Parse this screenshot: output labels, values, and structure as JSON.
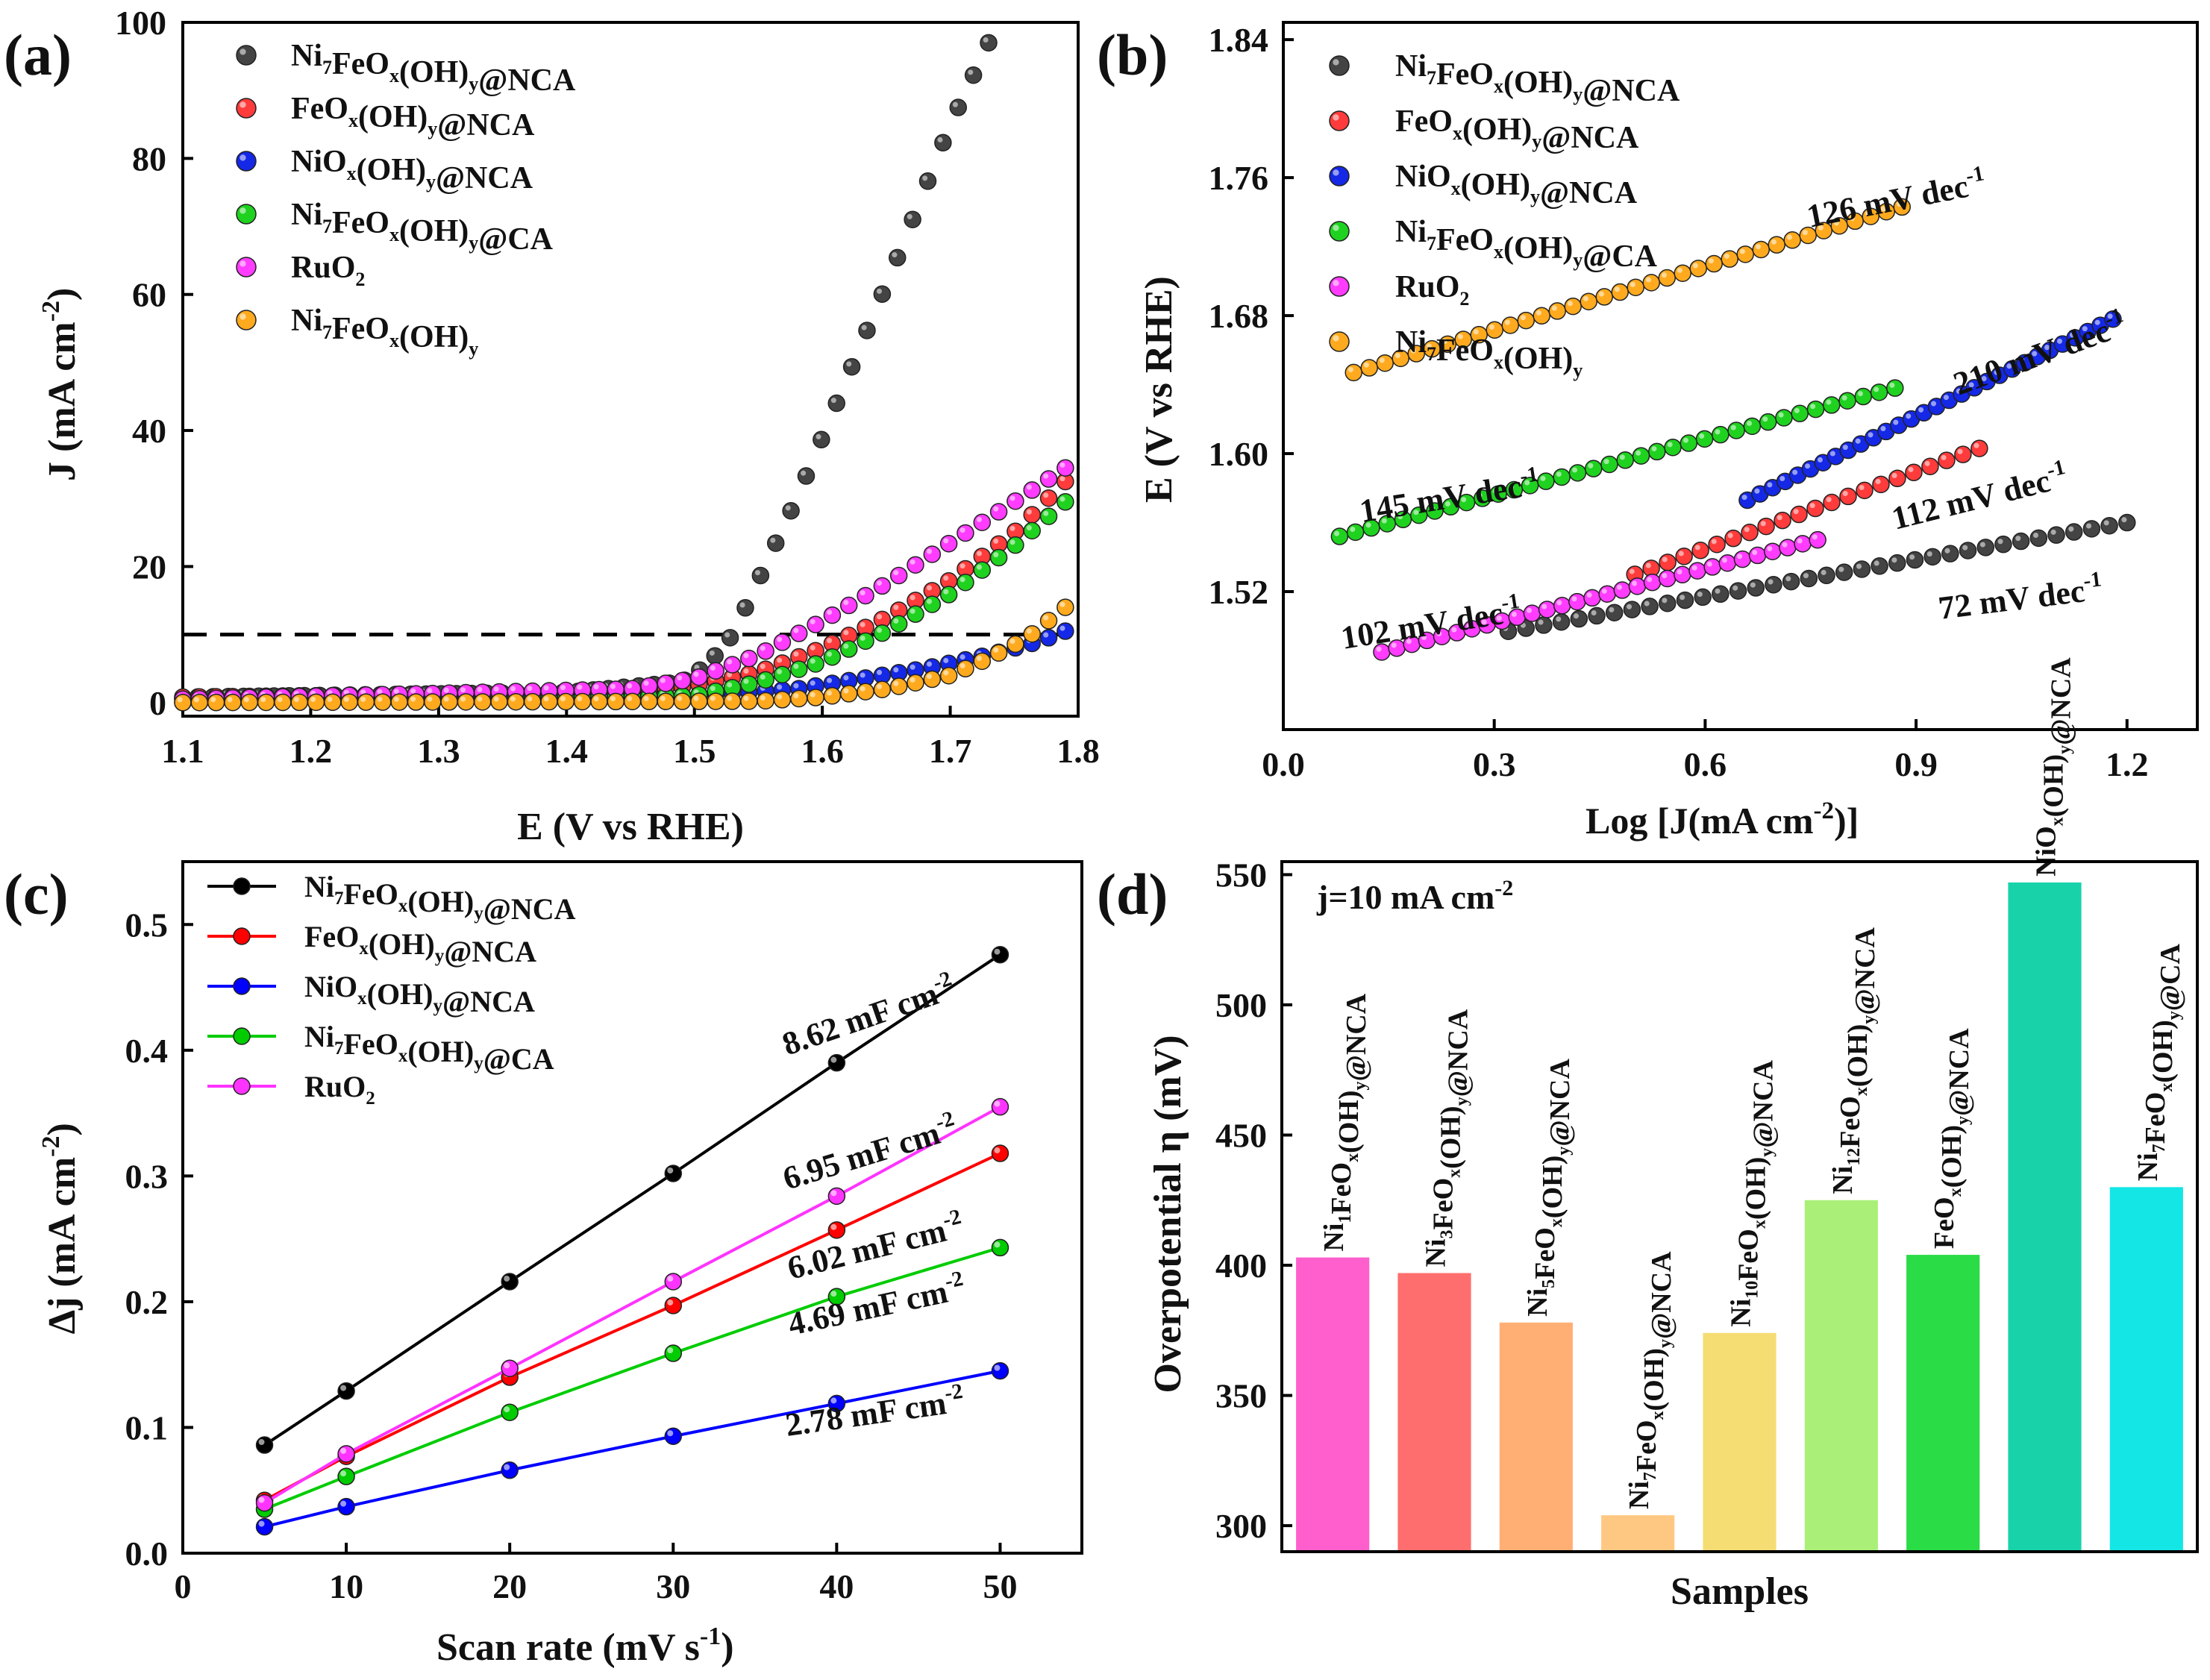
{
  "figure": {
    "panels": [
      "(a)",
      "(b)",
      "(c)",
      "(d)"
    ]
  },
  "colors": {
    "black": "#444444",
    "red": "#ff3b3b",
    "blue": "#1428e6",
    "green": "#1fd21f",
    "magenta": "#ff3cff",
    "orange": "#ffaa1e",
    "line_black": "#000000",
    "line_red": "#ff0000",
    "line_blue": "#0000ff",
    "line_green": "#00cc00",
    "line_magenta": "#ff33ff"
  },
  "chart_data": [
    {
      "panel": "(a)",
      "type": "scatter",
      "xlabel": "E (V vs RHE)",
      "ylabel": "J (mA cm-2)",
      "xlim": [
        1.1,
        1.8
      ],
      "ylim": [
        -2,
        100
      ],
      "xticks": [
        "1.1",
        "1.2",
        "1.3",
        "1.4",
        "1.5",
        "1.6",
        "1.7",
        "1.8"
      ],
      "yticks": [
        "0",
        "20",
        "40",
        "60",
        "80",
        "100"
      ],
      "reference_line_y": 10,
      "legend": [
        {
          "base": "Ni",
          "sub1": "7",
          "mid": "FeO",
          "sub2": "x",
          "mid2": "(OH)",
          "sub3": "y",
          "tail": "@NCA",
          "color": "black"
        },
        {
          "base": "",
          "sub1": "",
          "mid": "FeO",
          "sub2": "x",
          "mid2": "(OH)",
          "sub3": "y",
          "tail": "@NCA",
          "color": "red"
        },
        {
          "base": "",
          "sub1": "",
          "mid": "NiO",
          "sub2": "x",
          "mid2": "(OH)",
          "sub3": "y",
          "tail": "@NCA",
          "color": "blue"
        },
        {
          "base": "Ni",
          "sub1": "7",
          "mid": "FeO",
          "sub2": "x",
          "mid2": "(OH)",
          "sub3": "y",
          "tail": "@CA",
          "color": "green"
        },
        {
          "base": "",
          "sub1": "",
          "mid": "RuO",
          "sub2": "2",
          "mid2": "",
          "sub3": "",
          "tail": "",
          "color": "magenta"
        },
        {
          "base": "Ni",
          "sub1": "7",
          "mid": "FeO",
          "sub2": "x",
          "mid2": "(OH)",
          "sub3": "y",
          "tail": "",
          "color": "orange"
        }
      ],
      "series": [
        {
          "name": "Ni7FeOx(OH)y@NCA",
          "color": "black",
          "x": [
            1.1,
            1.4,
            1.49,
            1.51,
            1.53,
            1.55,
            1.58,
            1.62,
            1.66,
            1.7,
            1.73
          ],
          "y": [
            0.8,
            1.5,
            3,
            5.5,
            10,
            18,
            30,
            48,
            66,
            85,
            97
          ]
        },
        {
          "name": "FeOx(OH)y@NCA",
          "color": "red",
          "x": [
            1.1,
            1.45,
            1.5,
            1.55,
            1.6,
            1.65,
            1.7,
            1.75,
            1.79
          ],
          "y": [
            0.8,
            1.5,
            2.5,
            4.5,
            8,
            12.5,
            18,
            25,
            32.5
          ]
        },
        {
          "name": "NiOx(OH)y@NCA",
          "color": "blue",
          "x": [
            1.1,
            1.5,
            1.58,
            1.63,
            1.68,
            1.73,
            1.77,
            1.79
          ],
          "y": [
            0.5,
            1.0,
            2.0,
            3.5,
            5.0,
            7.0,
            9.0,
            10.5
          ]
        },
        {
          "name": "Ni7FeOx(OH)y@CA",
          "color": "green",
          "x": [
            1.1,
            1.5,
            1.55,
            1.6,
            1.65,
            1.7,
            1.75,
            1.79
          ],
          "y": [
            0,
            1.0,
            3,
            6,
            10.5,
            16,
            23,
            29.5
          ]
        },
        {
          "name": "RuO2",
          "color": "magenta",
          "x": [
            1.1,
            1.45,
            1.5,
            1.55,
            1.6,
            1.65,
            1.7,
            1.75,
            1.79
          ],
          "y": [
            0.5,
            2,
            3.5,
            7,
            12,
            17.5,
            23.5,
            29.5,
            34.5
          ]
        },
        {
          "name": "Ni7FeOx(OH)y",
          "color": "orange",
          "x": [
            1.1,
            1.55,
            1.6,
            1.65,
            1.7,
            1.73,
            1.76,
            1.79
          ],
          "y": [
            0,
            0.2,
            0.8,
            2.0,
            4.0,
            6.5,
            9.5,
            14
          ]
        }
      ]
    },
    {
      "panel": "(b)",
      "type": "scatter",
      "xlabel": "Log [J(mA cm-2)]",
      "ylabel": "E (V vs RHE)",
      "xlim": [
        0.0,
        1.3
      ],
      "ylim": [
        1.44,
        1.85
      ],
      "xticks": [
        "0.0",
        "0.3",
        "0.6",
        "0.9",
        "1.2"
      ],
      "yticks": [
        "1.52",
        "1.60",
        "1.68",
        "1.76",
        "1.84"
      ],
      "legend": [
        {
          "base": "Ni",
          "sub1": "7",
          "mid": "FeO",
          "sub2": "x",
          "mid2": "(OH)",
          "sub3": "y",
          "tail": "@NCA",
          "color": "black"
        },
        {
          "base": "",
          "sub1": "",
          "mid": "FeO",
          "sub2": "x",
          "mid2": "(OH)",
          "sub3": "y",
          "tail": "@NCA",
          "color": "red"
        },
        {
          "base": "",
          "sub1": "",
          "mid": "NiO",
          "sub2": "x",
          "mid2": "(OH)",
          "sub3": "y",
          "tail": "@NCA",
          "color": "blue"
        },
        {
          "base": "Ni",
          "sub1": "7",
          "mid": "FeO",
          "sub2": "x",
          "mid2": "(OH)",
          "sub3": "y",
          "tail": "@CA",
          "color": "green"
        },
        {
          "base": "",
          "sub1": "",
          "mid": "RuO",
          "sub2": "2",
          "mid2": "",
          "sub3": "",
          "tail": "",
          "color": "magenta"
        },
        {
          "base": "Ni",
          "sub1": "7",
          "mid": "FeO",
          "sub2": "x",
          "mid2": "(OH)",
          "sub3": "y",
          "tail": "",
          "color": "orange"
        }
      ],
      "series": [
        {
          "name": "Ni7FeOx(OH)y@NCA",
          "color": "black",
          "x": [
            0.32,
            1.2
          ],
          "y": [
            1.497,
            1.56
          ],
          "n": 36
        },
        {
          "name": "FeOx(OH)y@NCA",
          "color": "red",
          "x": [
            0.5,
            0.99
          ],
          "y": [
            1.53,
            1.603
          ],
          "n": 22
        },
        {
          "name": "NiOx(OH)y@NCA",
          "color": "blue",
          "x": [
            0.66,
            1.18
          ],
          "y": [
            1.573,
            1.678
          ],
          "n": 30
        },
        {
          "name": "Ni7FeOx(OH)y@CA",
          "color": "green",
          "x": [
            0.08,
            0.87
          ],
          "y": [
            1.552,
            1.638
          ],
          "n": 36
        },
        {
          "name": "RuO2",
          "color": "magenta",
          "x": [
            0.14,
            0.76
          ],
          "y": [
            1.485,
            1.55
          ],
          "n": 30
        },
        {
          "name": "Ni7FeOx(OH)y",
          "color": "orange",
          "x": [
            0.1,
            0.88
          ],
          "y": [
            1.647,
            1.743
          ],
          "n": 36
        }
      ],
      "annotations": [
        {
          "text": "126 mV dec",
          "sup": "-1",
          "color": "black"
        },
        {
          "text": "210 mV dec",
          "sup": "-1",
          "color": "black"
        },
        {
          "text": "145 mV dec",
          "sup": "-1",
          "color": "black"
        },
        {
          "text": "112 mV dec",
          "sup": "-1",
          "color": "black"
        },
        {
          "text": "102 mV dec",
          "sup": "-1",
          "color": "black"
        },
        {
          "text": "72 mV dec",
          "sup": "-1",
          "color": "black"
        }
      ]
    },
    {
      "panel": "(c)",
      "type": "line",
      "xlabel": "Scan rate (mV s-1)",
      "ylabel": "Δj (mA cm-2)",
      "xlim": [
        0,
        55
      ],
      "ylim": [
        0.0,
        0.55
      ],
      "xticks": [
        "0",
        "10",
        "20",
        "30",
        "40",
        "50"
      ],
      "yticks": [
        "0.0",
        "0.1",
        "0.2",
        "0.3",
        "0.4",
        "0.5"
      ],
      "x": [
        5,
        10,
        20,
        30,
        40,
        50
      ],
      "legend": [
        {
          "base": "Ni",
          "sub1": "7",
          "mid": "FeO",
          "sub2": "x",
          "mid2": "(OH)",
          "sub3": "y",
          "tail": "@NCA",
          "color": "line_black"
        },
        {
          "base": "",
          "sub1": "",
          "mid": "FeO",
          "sub2": "x",
          "mid2": "(OH)",
          "sub3": "y",
          "tail": "@NCA",
          "color": "line_red"
        },
        {
          "base": "",
          "sub1": "",
          "mid": "NiO",
          "sub2": "x",
          "mid2": "(OH)",
          "sub3": "y",
          "tail": "@NCA",
          "color": "line_blue"
        },
        {
          "base": "Ni",
          "sub1": "7",
          "mid": "FeO",
          "sub2": "x",
          "mid2": "(OH)",
          "sub3": "y",
          "tail": "@CA",
          "color": "line_green"
        },
        {
          "base": "",
          "sub1": "",
          "mid": "RuO",
          "sub2": "2",
          "mid2": "",
          "sub3": "",
          "tail": "",
          "color": "line_magenta"
        }
      ],
      "series": [
        {
          "name": "Ni7FeOx(OH)y@NCA",
          "color": "line_black",
          "values": [
            0.086,
            0.129,
            0.216,
            0.302,
            0.39,
            0.476
          ]
        },
        {
          "name": "FeOx(OH)y@NCA",
          "color": "line_red",
          "values": [
            0.042,
            0.077,
            0.14,
            0.197,
            0.257,
            0.318
          ]
        },
        {
          "name": "NiOx(OH)y@NCA",
          "color": "line_blue",
          "values": [
            0.021,
            0.037,
            0.066,
            0.093,
            0.119,
            0.145
          ]
        },
        {
          "name": "Ni7FeOx(OH)y@CA",
          "color": "line_green",
          "values": [
            0.035,
            0.061,
            0.112,
            0.159,
            0.204,
            0.243
          ]
        },
        {
          "name": "RuO2",
          "color": "line_magenta",
          "values": [
            0.04,
            0.079,
            0.147,
            0.216,
            0.284,
            0.355
          ]
        }
      ],
      "annotations": [
        {
          "text": "8.62 mF cm",
          "sup": "-2"
        },
        {
          "text": "6.95 mF cm",
          "sup": "-2"
        },
        {
          "text": "6.02 mF cm",
          "sup": "-2"
        },
        {
          "text": "4.69 mF cm",
          "sup": "-2"
        },
        {
          "text": "2.78 mF cm",
          "sup": "-2"
        }
      ]
    },
    {
      "panel": "(d)",
      "type": "bar",
      "title": "j=10 mA cm",
      "title_sup": "-2",
      "xlabel": "Samples",
      "ylabel": "Overpotential η (mV)",
      "ylim": [
        290,
        555
      ],
      "yticks": [
        "300",
        "350",
        "400",
        "450",
        "500",
        "550"
      ],
      "categories": [
        {
          "a": "Ni",
          "n": "1",
          "b": "FeO",
          "x": "x",
          "c": "(OH)",
          "y": "y",
          "d": "@NCA",
          "color": "#ff5fcd"
        },
        {
          "a": "Ni",
          "n": "3",
          "b": "FeO",
          "x": "x",
          "c": "(OH)",
          "y": "y",
          "d": "@NCA",
          "color": "#ff6e6e"
        },
        {
          "a": "Ni",
          "n": "5",
          "b": "FeO",
          "x": "x",
          "c": "(OH)",
          "y": "y",
          "d": "@NCA",
          "color": "#ffaf73"
        },
        {
          "a": "Ni",
          "n": "7",
          "b": "FeO",
          "x": "x",
          "c": "(OH)",
          "y": "y",
          "d": "@NCA",
          "color": "#ffc882"
        },
        {
          "a": "Ni",
          "n": "10",
          "b": "FeO",
          "x": "x",
          "c": "(OH)",
          "y": "y",
          "d": "@NCA",
          "color": "#f5dc73"
        },
        {
          "a": "Ni",
          "n": "12",
          "b": "FeO",
          "x": "x",
          "c": "(OH)",
          "y": "y",
          "d": "@NCA",
          "color": "#aaf078"
        },
        {
          "a": "",
          "n": "",
          "b": "FeO",
          "x": "x",
          "c": "(OH)",
          "y": "y",
          "d": "@NCA",
          "color": "#2adc46"
        },
        {
          "a": "",
          "n": "",
          "b": "NiO",
          "x": "x",
          "c": "(OH)",
          "y": "y",
          "d": "@NCA",
          "color": "#18d2aa"
        },
        {
          "a": "Ni",
          "n": "7",
          "b": "FeO",
          "x": "x",
          "c": "(OH)",
          "y": "y",
          "d": "@CA",
          "color": "#14e6e6"
        }
      ],
      "values": [
        403,
        397,
        378,
        304,
        374,
        425,
        404,
        547,
        430
      ]
    }
  ]
}
